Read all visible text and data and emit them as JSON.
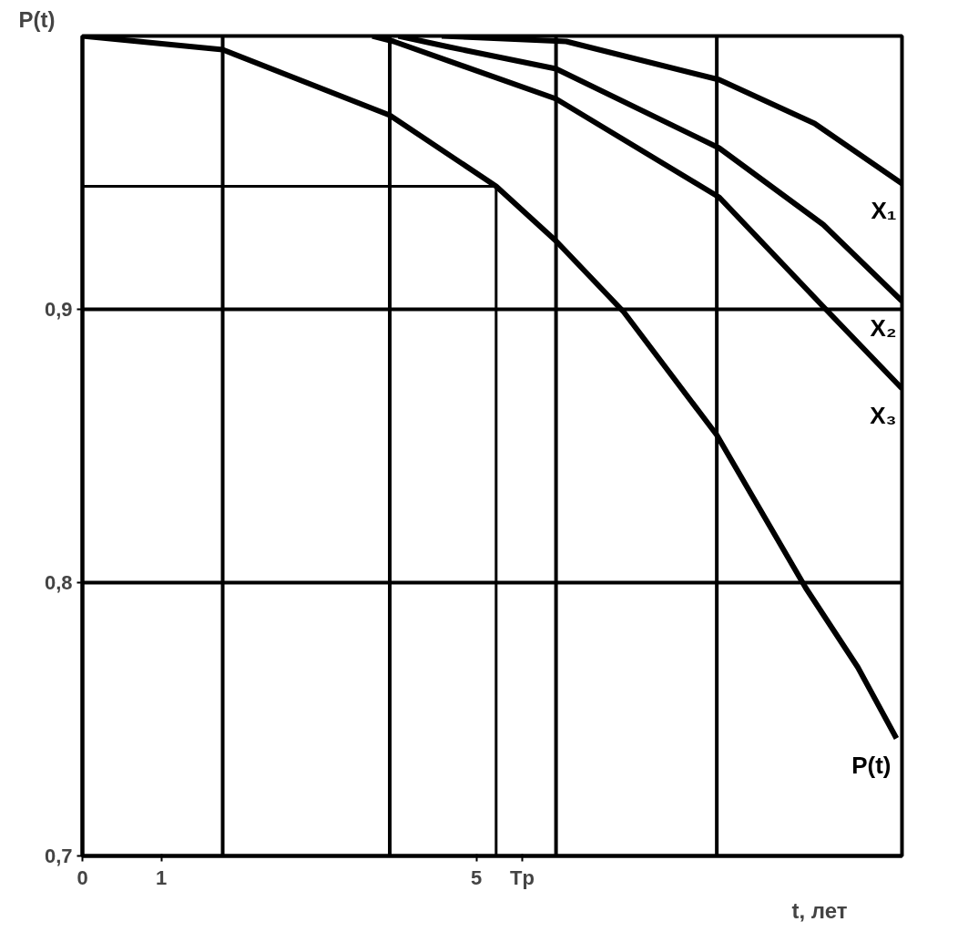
{
  "chart_data": {
    "type": "line",
    "xlabel": "t, лет",
    "ylabel": "P(t)",
    "xlim": [
      0,
      10.4
    ],
    "ylim": [
      0.7,
      1.0
    ],
    "xticks": [
      0,
      1,
      5,
      {
        "value": 5.58,
        "label": "Tp"
      }
    ],
    "yticks": [
      {
        "value": 0.7,
        "label": "0,7"
      },
      {
        "value": 0.8,
        "label": "0,8"
      },
      {
        "value": 0.9,
        "label": "0,9"
      }
    ],
    "grid": "y",
    "marker": "none",
    "line_style": "solid",
    "ref_lines": [
      {
        "axis": "x",
        "value": 1.78,
        "label": null
      },
      {
        "axis": "x",
        "value": 3.9,
        "label": null
      },
      {
        "axis": "x",
        "value": 6.01,
        "label": null
      },
      {
        "axis": "x",
        "value": 8.05,
        "label": null
      }
    ],
    "series": [
      {
        "name": "X₁",
        "color": "#000000",
        "x": [
          4.56,
          6.14,
          8.08,
          9.29,
          10.4
        ],
        "values": [
          1.0,
          0.998,
          0.984,
          0.968,
          0.946
        ]
      },
      {
        "name": "X₂",
        "color": "#000000",
        "x": [
          4.01,
          4.65,
          6.01,
          8.08,
          9.4,
          10.4
        ],
        "values": [
          1.0,
          0.996,
          0.988,
          0.959,
          0.931,
          0.903
        ]
      },
      {
        "name": "X₃",
        "color": "#000000",
        "x": [
          3.68,
          3.95,
          6.01,
          8.08,
          9.4,
          10.4
        ],
        "values": [
          1.0,
          0.998,
          0.977,
          0.941,
          0.901,
          0.871
        ]
      },
      {
        "name": "P(t)",
        "color": "#000000",
        "x": [
          0,
          1.78,
          3.9,
          5.25,
          6.01,
          6.87,
          8.05,
          9.18,
          9.84,
          10.33
        ],
        "values": [
          1.0,
          0.995,
          0.971,
          0.945,
          0.925,
          0.899,
          0.854,
          0.798,
          0.769,
          0.743
        ]
      },
      {
        "color": "#000000",
        "x": [
          0,
          5.25,
          5.25
        ],
        "values": [
          0.945,
          0.945,
          0.7
        ]
      }
    ]
  }
}
